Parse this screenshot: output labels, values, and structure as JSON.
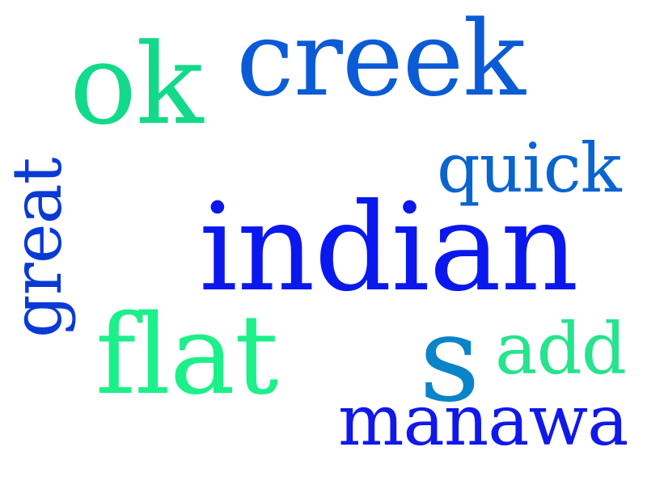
{
  "words": {
    "ok": {
      "text": "ok",
      "color": "#13d98b"
    },
    "creek": {
      "text": "creek",
      "color": "#0b5bd6"
    },
    "quick": {
      "text": "quick",
      "color": "#0a64d0"
    },
    "great": {
      "text": "great",
      "color": "#0a3ad6"
    },
    "indian": {
      "text": "indian",
      "color": "#0a18ee"
    },
    "flat": {
      "text": "flat",
      "color": "#1cf08a"
    },
    "s": {
      "text": "s",
      "color": "#0a84c8"
    },
    "add": {
      "text": "add",
      "color": "#26e38e"
    },
    "manawa": {
      "text": "manawa",
      "color": "#1018ea"
    }
  }
}
